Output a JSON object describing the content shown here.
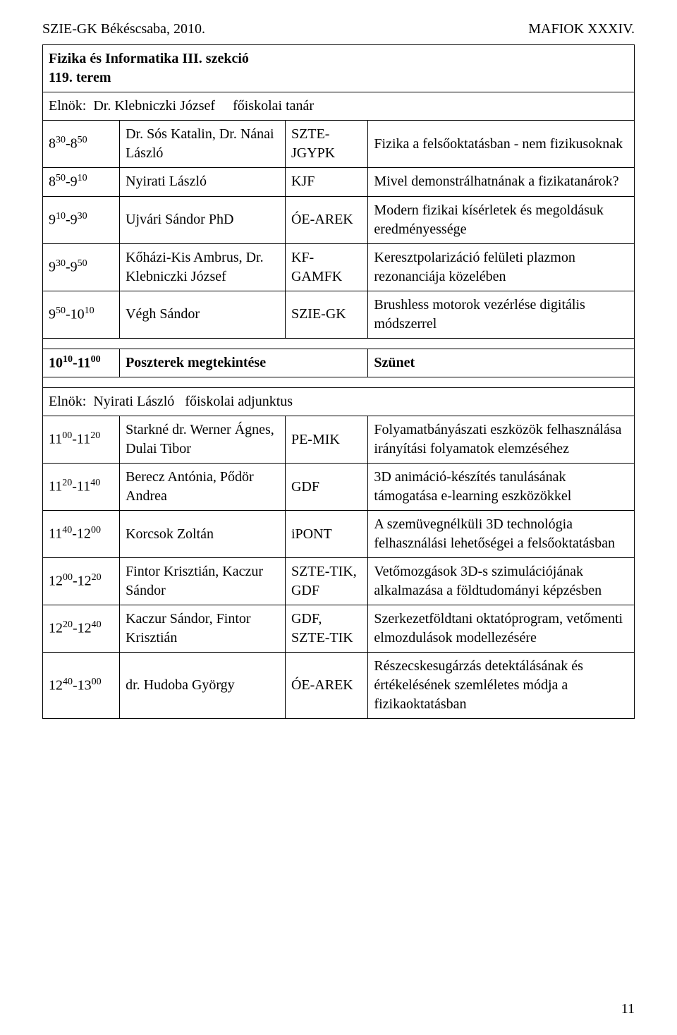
{
  "header": {
    "left": "SZIE-GK Békéscsaba, 2010.",
    "right": "MAFIOK XXXIV."
  },
  "section_title_line1": "Fizika és Informatika III. szekció",
  "section_title_line2": "119. terem",
  "chair1_prefix": "Elnök:",
  "chair1_name": "Dr. Klebniczki József",
  "chair1_role": "főiskolai tanár",
  "rows1": [
    {
      "time_html": "8<sup>30</sup>-8<sup>50</sup>",
      "presenter": "Dr. Sós Katalin, Dr. Nánai László",
      "inst": "SZTE-JGYPK",
      "topic": "Fizika a felsőoktatásban - nem fizikusoknak"
    },
    {
      "time_html": "8<sup>50</sup>-9<sup>10</sup>",
      "presenter": "Nyirati László",
      "inst": "KJF",
      "topic": "Mivel demonstrálhatnának a fizikatanárok?"
    },
    {
      "time_html": "9<sup>10</sup>-9<sup>30</sup>",
      "presenter": "Ujvári Sándor PhD",
      "inst": "ÓE-AREK",
      "topic": "Modern fizikai kísérletek és megoldásuk eredményessége"
    },
    {
      "time_html": "9<sup>30</sup>-9<sup>50</sup>",
      "presenter": "Kőházi-Kis Ambrus, Dr. Klebniczki József",
      "inst": "KF-GAMFK",
      "topic": "Keresztpolarizáció felületi plazmon rezonanciája közelében"
    },
    {
      "time_html": "9<sup>50</sup>-10<sup>10</sup>",
      "presenter": "Végh Sándor",
      "inst": "SZIE-GK",
      "topic": "Brushless motorok vezérlése digitális módszerrel"
    }
  ],
  "break": {
    "time_html": "10<sup>10</sup>-11<sup>00</sup>",
    "label": "Poszterek megtekintése",
    "status": "Szünet"
  },
  "chair2_prefix": "Elnök:",
  "chair2_name": "Nyirati László",
  "chair2_role": "főiskolai adjunktus",
  "rows2": [
    {
      "time_html": "11<sup>00</sup>-11<sup>20</sup>",
      "presenter": "Starkné dr. Werner Ágnes, Dulai Tibor",
      "inst": "PE-MIK",
      "topic": "Folyamatbányászati eszközök felhasználása irányítási folyamatok elemzéséhez"
    },
    {
      "time_html": "11<sup>20</sup>-11<sup>40</sup>",
      "presenter": "Berecz Antónia, Pődör Andrea",
      "inst": "GDF",
      "topic": "3D animáció-készítés tanulásának támogatása e-learning eszközökkel"
    },
    {
      "time_html": "11<sup>40</sup>-12<sup>00</sup>",
      "presenter": "Korcsok Zoltán",
      "inst": "iPONT",
      "topic": "A szemüvegnélküli 3D technológia felhasználási lehetőségei a felsőoktatásban"
    },
    {
      "time_html": "12<sup>00</sup>-12<sup>20</sup>",
      "presenter": "Fintor Krisztián, Kaczur Sándor",
      "inst": "SZTE-TIK, GDF",
      "topic": "Vetőmozgások 3D-s szimulációjának alkalmazása a földtudományi képzésben"
    },
    {
      "time_html": "12<sup>20</sup>-12<sup>40</sup>",
      "presenter": "Kaczur Sándor, Fintor Krisztián",
      "inst": "GDF, SZTE-TIK",
      "topic": "Szerkezetföldtani oktatóprogram, vetőmenti elmozdulások modellezésére"
    },
    {
      "time_html": "12<sup>40</sup>-13<sup>00</sup>",
      "presenter": "dr. Hudoba György",
      "inst": "ÓE-AREK",
      "topic": "Részecskesugárzás detektálásának és értékelésének szemléletes módja a fizikaoktatásban"
    }
  ],
  "page_number": "11"
}
